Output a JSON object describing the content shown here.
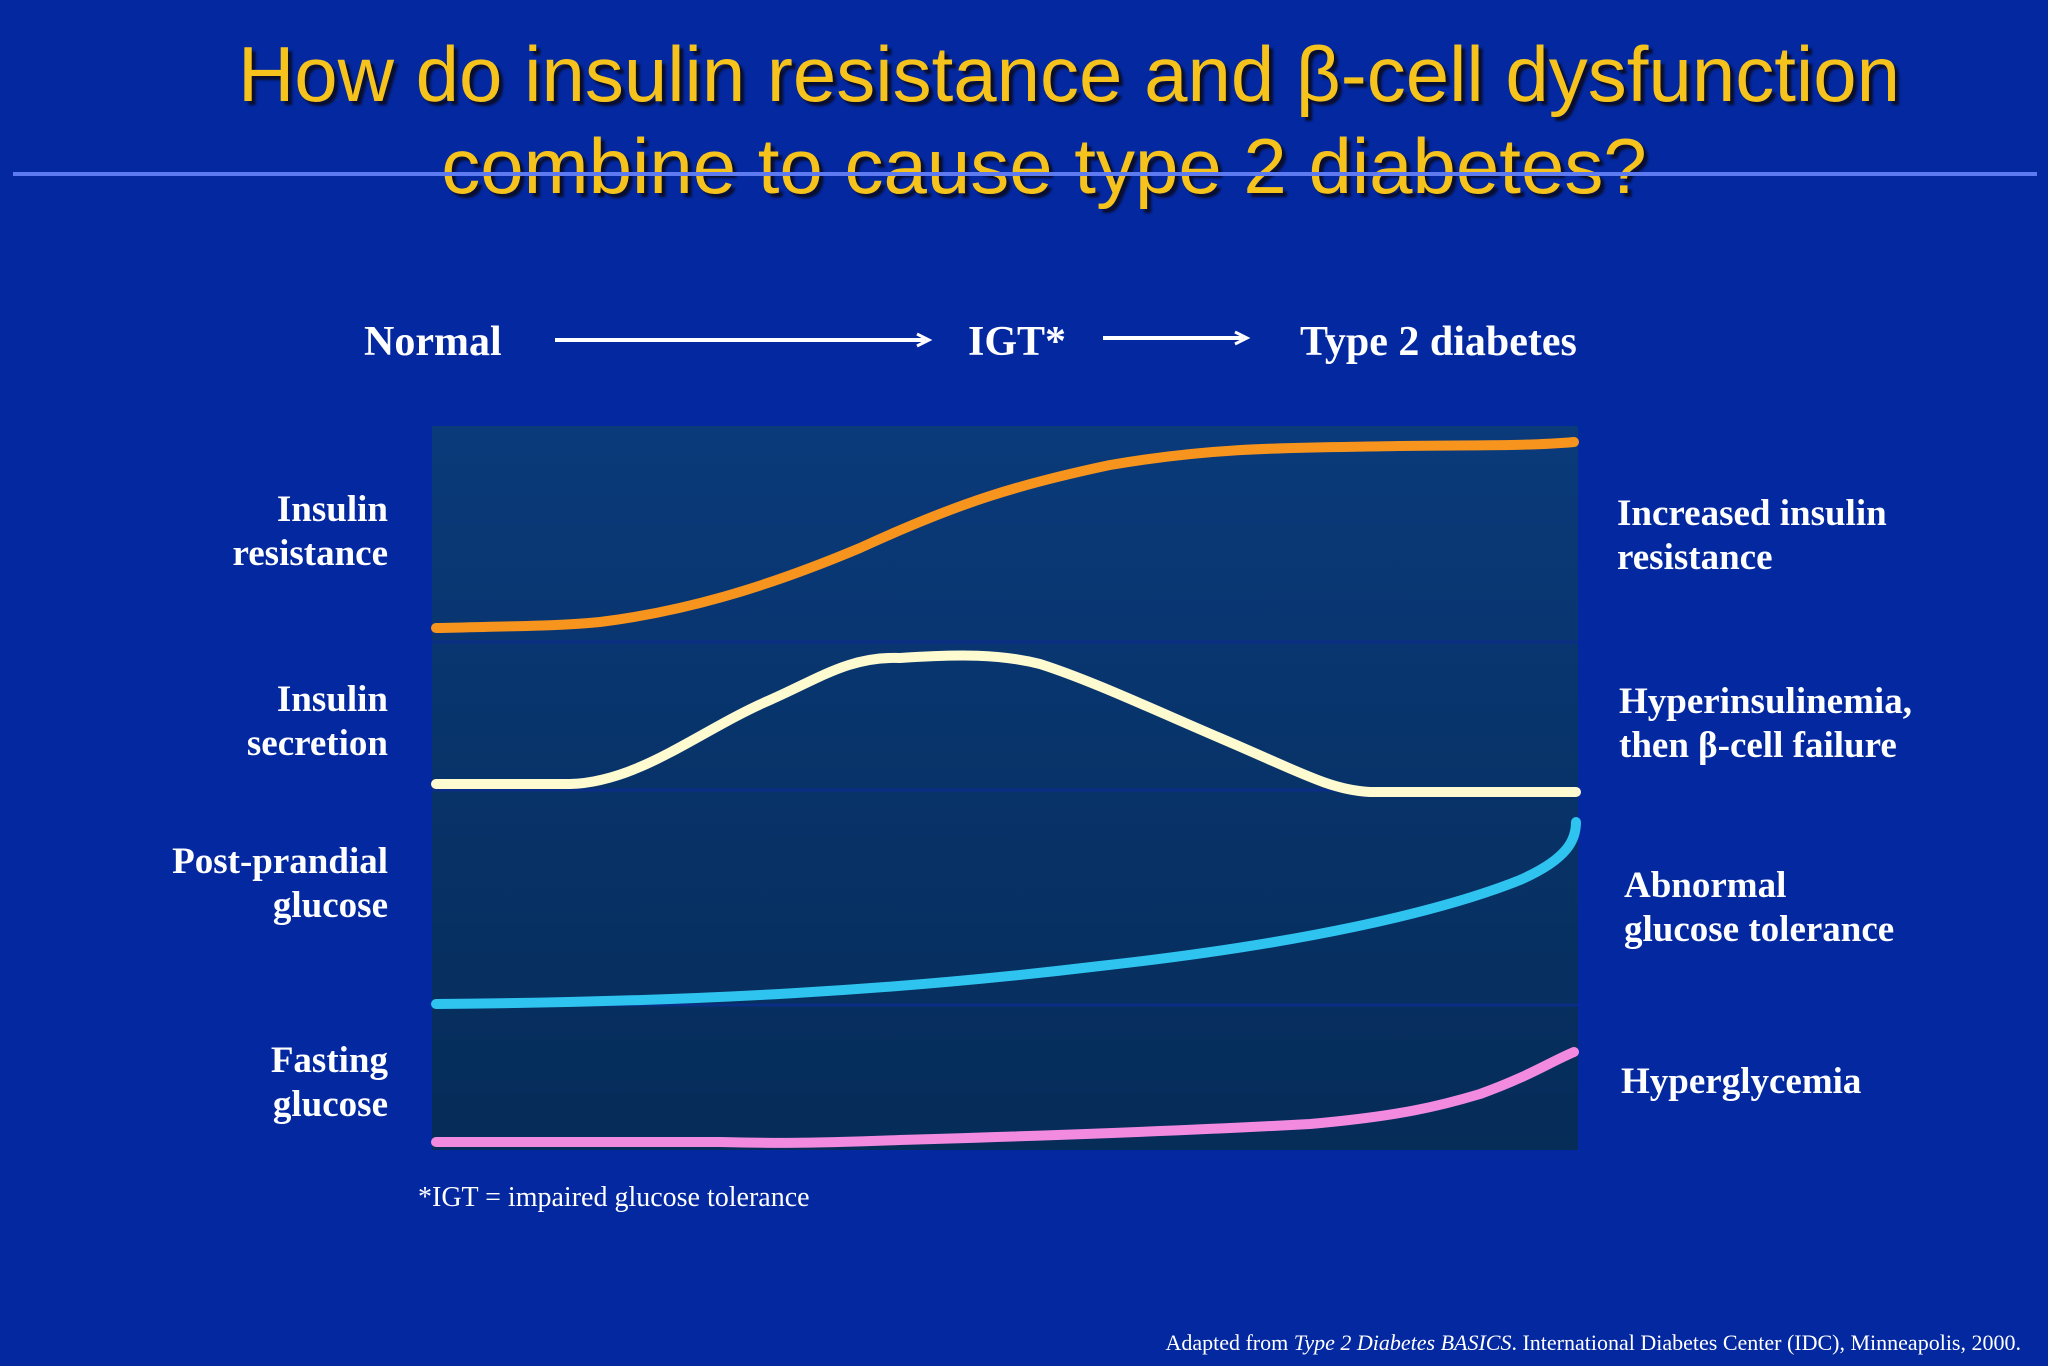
{
  "slide": {
    "title_line1": "How do insulin resistance and β-cell dysfunction",
    "title_line2": "combine to cause type 2 diabetes?"
  },
  "stages": {
    "normal": "Normal",
    "igt": "IGT*",
    "diabetes": "Type 2 diabetes"
  },
  "rows": [
    {
      "label_line1": "Insulin",
      "label_line2": "resistance",
      "outcome_line1": "Increased insulin",
      "outcome_line2": "resistance",
      "color": "#f7941d"
    },
    {
      "label_line1": "Insulin",
      "label_line2": "secretion",
      "outcome_line1": "Hyperinsulinemia,",
      "outcome_line2": "then β-cell failure",
      "color": "#fffbd0"
    },
    {
      "label_line1": "Post-prandial",
      "label_line2": "glucose",
      "outcome_line1": "Abnormal",
      "outcome_line2": "glucose tolerance",
      "color": "#2fc3ef"
    },
    {
      "label_line1": "Fasting",
      "label_line2": "glucose",
      "outcome_line1": "Hyperglycemia",
      "outcome_line2": "",
      "color": "#f28ae0"
    }
  ],
  "footnote": "*IGT = impaired glucose tolerance",
  "source": {
    "prefix": "Adapted from ",
    "book": "Type 2 Diabetes BASICS",
    "suffix": ". International Diabetes Center (IDC), Minneapolis, 2000."
  },
  "colors": {
    "background": "#0328a0",
    "title": "#f6c31d",
    "panel_top": "#0a3a7a",
    "panel_bottom": "#062c58"
  }
}
